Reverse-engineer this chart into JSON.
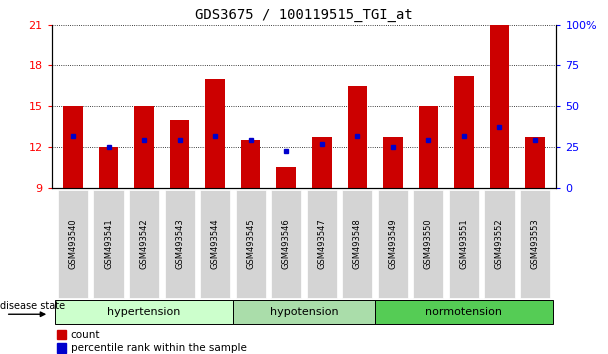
{
  "title": "GDS3675 / 100119515_TGI_at",
  "samples": [
    "GSM493540",
    "GSM493541",
    "GSM493542",
    "GSM493543",
    "GSM493544",
    "GSM493545",
    "GSM493546",
    "GSM493547",
    "GSM493548",
    "GSM493549",
    "GSM493550",
    "GSM493551",
    "GSM493552",
    "GSM493553"
  ],
  "count_values": [
    15.0,
    12.0,
    15.0,
    14.0,
    17.0,
    12.5,
    10.5,
    12.7,
    16.5,
    12.7,
    15.0,
    17.2,
    21.0,
    12.7
  ],
  "percentile_values": [
    12.8,
    12.0,
    12.5,
    12.5,
    12.8,
    12.5,
    11.7,
    12.2,
    12.8,
    12.0,
    12.5,
    12.8,
    13.5,
    12.5
  ],
  "ymin": 9,
  "ymax": 21,
  "yticks": [
    9,
    12,
    15,
    18,
    21
  ],
  "right_yticklabels": [
    "0",
    "25",
    "50",
    "75",
    "100%"
  ],
  "bar_color": "#cc0000",
  "percentile_color": "#0000cc",
  "bar_width": 0.55,
  "groups": [
    {
      "label": "hypertension",
      "start": 0,
      "end": 5,
      "color": "#ccffcc"
    },
    {
      "label": "hypotension",
      "start": 5,
      "end": 9,
      "color": "#aaddaa"
    },
    {
      "label": "normotension",
      "start": 9,
      "end": 14,
      "color": "#55cc55"
    }
  ],
  "base_value": 9
}
